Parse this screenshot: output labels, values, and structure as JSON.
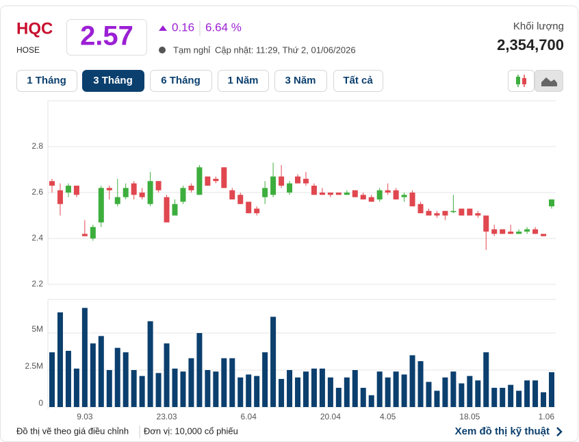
{
  "header": {
    "symbol": "HQC",
    "exchange": "HOSE",
    "price": 2.57,
    "change": 0.16,
    "change_percent": "6.64 %",
    "status": "Tạm nghỉ",
    "updated": "Cập nhật: 11:29, Thứ 2, 01/06/2026",
    "volume_label": "Khối lượng",
    "volume": "2,354,700"
  },
  "range_buttons": [
    "1 Tháng",
    "3 Tháng",
    "6 Tháng",
    "1 Năm",
    "3 Năm",
    "Tất cả"
  ],
  "active_range": 1,
  "chart_data": [
    {
      "type": "candlestick",
      "categories": [
        null,
        null,
        null,
        null,
        "9.03",
        null,
        null,
        null,
        null,
        null,
        null,
        null,
        null,
        null,
        "23.03",
        null,
        null,
        null,
        null,
        null,
        null,
        null,
        null,
        null,
        "6.04",
        null,
        null,
        null,
        null,
        null,
        null,
        null,
        null,
        null,
        "20.04",
        null,
        null,
        null,
        null,
        null,
        null,
        "4.05",
        null,
        null,
        null,
        null,
        null,
        null,
        null,
        null,
        null,
        "18.05",
        null,
        null,
        null,
        null,
        null,
        null,
        null,
        null,
        null,
        "1.06"
      ],
      "open": [
        2.65,
        2.61,
        2.6,
        2.63,
        2.42,
        2.4,
        2.47,
        2.62,
        2.55,
        2.58,
        2.64,
        2.6,
        2.55,
        2.65,
        2.58,
        2.5,
        2.56,
        2.63,
        2.59,
        2.67,
        2.66,
        2.71,
        2.61,
        2.59,
        2.56,
        2.53,
        2.58,
        2.59,
        2.67,
        2.6,
        2.67,
        2.66,
        2.63,
        2.6,
        2.6,
        2.6,
        2.59,
        2.61,
        2.59,
        2.58,
        2.57,
        2.61,
        2.61,
        2.58,
        2.6,
        2.55,
        2.52,
        2.51,
        2.52,
        2.515,
        2.53,
        2.53,
        2.51,
        2.5,
        2.44,
        2.44,
        2.43,
        2.42,
        2.43,
        2.44,
        2.42,
        2.54
      ],
      "high": [
        2.66,
        2.64,
        2.64,
        2.63,
        2.48,
        2.46,
        2.63,
        2.63,
        2.66,
        2.64,
        2.65,
        2.62,
        2.69,
        2.65,
        2.59,
        2.57,
        2.63,
        2.64,
        2.72,
        2.67,
        2.67,
        2.71,
        2.62,
        2.6,
        2.56,
        2.54,
        2.65,
        2.73,
        2.72,
        2.65,
        2.68,
        2.69,
        2.64,
        2.62,
        2.6,
        2.6,
        2.61,
        2.61,
        2.6,
        2.59,
        2.62,
        2.64,
        2.62,
        2.6,
        2.61,
        2.56,
        2.53,
        2.52,
        2.52,
        2.59,
        2.53,
        2.53,
        2.52,
        2.5,
        2.46,
        2.44,
        2.46,
        2.44,
        2.45,
        2.45,
        2.42,
        2.57
      ],
      "low": [
        2.6,
        2.5,
        2.58,
        2.58,
        2.41,
        2.39,
        2.45,
        2.57,
        2.54,
        2.57,
        2.57,
        2.57,
        2.54,
        2.6,
        2.47,
        2.5,
        2.55,
        2.6,
        2.59,
        2.63,
        2.64,
        2.62,
        2.57,
        2.55,
        2.51,
        2.5,
        2.55,
        2.58,
        2.62,
        2.59,
        2.64,
        2.63,
        2.59,
        2.59,
        2.58,
        2.59,
        2.59,
        2.58,
        2.57,
        2.56,
        2.56,
        2.59,
        2.57,
        2.56,
        2.54,
        2.51,
        2.5,
        2.49,
        2.48,
        2.51,
        2.5,
        2.5,
        2.49,
        2.35,
        2.41,
        2.42,
        2.42,
        2.42,
        2.42,
        2.42,
        2.41,
        2.53
      ],
      "close": [
        2.63,
        2.55,
        2.63,
        2.59,
        2.41,
        2.45,
        2.62,
        2.61,
        2.58,
        2.62,
        2.59,
        2.58,
        2.65,
        2.61,
        2.47,
        2.55,
        2.62,
        2.61,
        2.71,
        2.63,
        2.65,
        2.62,
        2.57,
        2.55,
        2.51,
        2.51,
        2.62,
        2.67,
        2.63,
        2.64,
        2.64,
        2.64,
        2.59,
        2.59,
        2.59,
        2.59,
        2.6,
        2.58,
        2.57,
        2.56,
        2.61,
        2.6,
        2.57,
        2.59,
        2.54,
        2.51,
        2.5,
        2.5,
        2.5,
        2.52,
        2.5,
        2.5,
        2.5,
        2.43,
        2.42,
        2.42,
        2.42,
        2.43,
        2.44,
        2.42,
        2.41,
        2.57
      ],
      "up_color": "#3dae3d",
      "down_color": "#e0474f",
      "ylim": [
        2.2,
        3.0
      ],
      "yticks": [
        2.2,
        2.4,
        2.6,
        2.8
      ],
      "grid": true
    },
    {
      "type": "bar",
      "values": [
        3700000,
        6400000,
        3800000,
        2600000,
        6700000,
        4300000,
        4800000,
        2500000,
        4000000,
        3700000,
        2500000,
        2100000,
        5800000,
        2300000,
        4300000,
        2600000,
        2400000,
        3300000,
        5000000,
        2500000,
        2400000,
        3300000,
        3300000,
        2000000,
        2200000,
        2100000,
        3700000,
        6100000,
        1900000,
        2500000,
        2000000,
        2400000,
        2600000,
        2600000,
        2000000,
        1300000,
        2000000,
        2500000,
        1300000,
        800000,
        2400000,
        2000000,
        2400000,
        2200000,
        3500000,
        3100000,
        1700000,
        1100000,
        2000000,
        2400000,
        1600000,
        2100000,
        1800000,
        3700000,
        1300000,
        1300000,
        1500000,
        1100000,
        1800000,
        1800000,
        1000000,
        2354700
      ],
      "color": "#0b3f6e",
      "ylim": [
        0,
        7270000
      ],
      "yticks": [
        0,
        {
          "value": 2500000,
          "label": "2.5M"
        },
        {
          "value": 5000000,
          "label": "5M"
        }
      ],
      "grid": true
    }
  ],
  "footer": {
    "note": "Đồ thị vẽ theo giá điều chỉnh",
    "unit": "Đơn vị: 10,000 cổ phiếu",
    "link": "Xem đồ thị kỹ thuật"
  }
}
